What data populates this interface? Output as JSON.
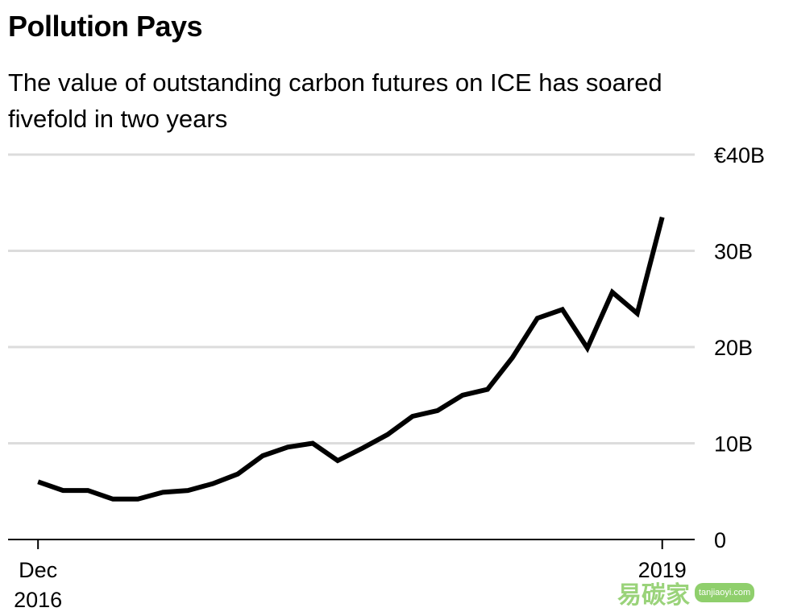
{
  "chart_data": {
    "type": "line",
    "title": "Pollution Pays",
    "subtitle": "The value of outstanding carbon futures on ICE has soared fivefold in two years",
    "xlabel": "",
    "ylabel": "",
    "x_ticks": [
      {
        "label": [
          "Dec",
          "2016"
        ],
        "value": 0
      },
      {
        "label": [
          "2019"
        ],
        "value": 25
      }
    ],
    "y_ticks": [
      {
        "label": "0",
        "value": 0
      },
      {
        "label": "10B",
        "value": 10
      },
      {
        "label": "20B",
        "value": 20
      },
      {
        "label": "30B",
        "value": 30
      },
      {
        "label": "€40B",
        "value": 40
      }
    ],
    "ylim": [
      0,
      40
    ],
    "xlim": [
      -1.2,
      26.3
    ],
    "grid": true,
    "series": [
      {
        "values": [
          6.0,
          5.1,
          5.1,
          4.2,
          4.2,
          4.9,
          5.1,
          5.8,
          6.8,
          8.7,
          9.6,
          10.0,
          8.2,
          9.5,
          10.9,
          12.8,
          13.4,
          15.0,
          15.6,
          18.9,
          23.0,
          23.9,
          19.9,
          25.7,
          23.5,
          33.5
        ],
        "color": "#000000"
      }
    ]
  },
  "watermark": {
    "text": "易碳家",
    "badge": "tanjiaoyi.com"
  }
}
